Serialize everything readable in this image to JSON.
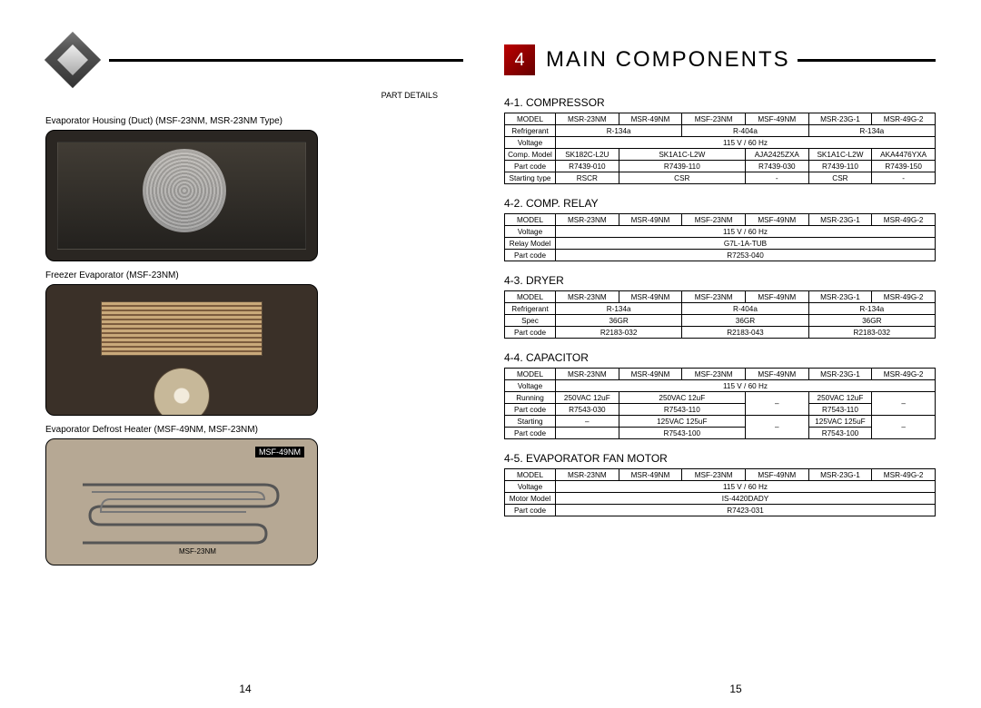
{
  "left": {
    "part_details": "PART DETAILS",
    "caption1": "Evaporator Housing (Duct) (MSF-23NM, MSR-23NM Type)",
    "caption2": "Freezer Evaporator (MSF-23NM)",
    "caption3": "Evaporator Defrost Heater (MSF-49NM, MSF-23NM)",
    "photo3_label_top": "MSF-49NM",
    "photo3_label_bottom": "MSF-23NM",
    "page_num": "14"
  },
  "right": {
    "section_num": "4",
    "main_title": "MAIN COMPONENTS",
    "page_num": "15",
    "models": [
      "MSR-23NM",
      "MSR-49NM",
      "MSF-23NM",
      "MSF-49NM",
      "MSR-23G-1",
      "MSR-49G-2"
    ],
    "sections": {
      "compressor": {
        "title": "4-1. COMPRESSOR",
        "rows": [
          {
            "label": "MODEL",
            "cells": [
              "MSR-23NM",
              "MSR-49NM",
              "MSF-23NM",
              "MSF-49NM",
              "MSR-23G-1",
              "MSR-49G-2"
            ],
            "header": true
          },
          {
            "label": "Refrigerant",
            "cells": [
              {
                "span": 2,
                "v": "R-134a"
              },
              {
                "span": 2,
                "v": "R-404a"
              },
              {
                "span": 2,
                "v": "R-134a"
              }
            ]
          },
          {
            "label": "Voltage",
            "cells": [
              {
                "span": 6,
                "v": "115 V / 60 Hz"
              }
            ]
          },
          {
            "label": "Comp. Model",
            "cells": [
              "SK182C-L2U",
              {
                "span": 2,
                "v": "SK1A1C-L2W"
              },
              "AJA2425ZXA",
              "SK1A1C-L2W",
              "AKA4476YXA"
            ]
          },
          {
            "label": "Part code",
            "cells": [
              "R7439-010",
              {
                "span": 2,
                "v": "R7439-110"
              },
              "R7439-030",
              "R7439-110",
              "R7439-150"
            ]
          },
          {
            "label": "Starting type",
            "cells": [
              "RSCR",
              {
                "span": 2,
                "v": "CSR"
              },
              "-",
              "CSR",
              "-"
            ]
          }
        ]
      },
      "relay": {
        "title": "4-2. COMP. RELAY",
        "rows": [
          {
            "label": "MODEL",
            "cells": [
              "MSR-23NM",
              "MSR-49NM",
              "MSF-23NM",
              "MSF-49NM",
              "MSR-23G-1",
              "MSR-49G-2"
            ],
            "header": true
          },
          {
            "label": "Voltage",
            "cells": [
              {
                "span": 6,
                "v": "115 V / 60 Hz"
              }
            ]
          },
          {
            "label": "Relay Model",
            "cells": [
              {
                "span": 6,
                "v": "G7L-1A-TUB"
              }
            ]
          },
          {
            "label": "Part code",
            "cells": [
              {
                "span": 6,
                "v": "R7253-040"
              }
            ]
          }
        ]
      },
      "dryer": {
        "title": "4-3. DRYER",
        "rows": [
          {
            "label": "MODEL",
            "cells": [
              "MSR-23NM",
              "MSR-49NM",
              "MSF-23NM",
              "MSF-49NM",
              "MSR-23G-1",
              "MSR-49G-2"
            ],
            "header": true
          },
          {
            "label": "Refrigerant",
            "cells": [
              {
                "span": 2,
                "v": "R-134a"
              },
              {
                "span": 2,
                "v": "R-404a"
              },
              {
                "span": 2,
                "v": "R-134a"
              }
            ]
          },
          {
            "label": "Spec",
            "cells": [
              {
                "span": 2,
                "v": "36GR"
              },
              {
                "span": 2,
                "v": "36GR"
              },
              {
                "span": 2,
                "v": "36GR"
              }
            ]
          },
          {
            "label": "Part code",
            "cells": [
              {
                "span": 2,
                "v": "R2183-032"
              },
              {
                "span": 2,
                "v": "R2183-043"
              },
              {
                "span": 2,
                "v": "R2183-032"
              }
            ]
          }
        ]
      },
      "capacitor": {
        "title": "4-4. CAPACITOR",
        "rows": [
          {
            "label": "MODEL",
            "cells": [
              "MSR-23NM",
              "MSR-49NM",
              "MSF-23NM",
              "MSF-49NM",
              "MSR-23G-1",
              "MSR-49G-2"
            ],
            "header": true
          },
          {
            "label": "Voltage",
            "cells": [
              {
                "span": 6,
                "v": "115 V / 60 Hz"
              }
            ]
          },
          {
            "label": "Running",
            "cells": [
              "250VAC 12uF",
              {
                "span": 2,
                "v": "250VAC 12uF"
              },
              {
                "rowspan": 2,
                "v": "–"
              },
              "250VAC 12uF",
              {
                "rowspan": 2,
                "v": "–"
              }
            ]
          },
          {
            "label": "Part code",
            "cells": [
              "R7543-030",
              {
                "span": 2,
                "v": "R7543-110"
              },
              "R7543-110"
            ]
          },
          {
            "label": "Starting",
            "cells": [
              "–",
              {
                "span": 2,
                "v": "125VAC 125uF"
              },
              {
                "rowspan": 2,
                "v": "–"
              },
              "125VAC 125uF",
              {
                "rowspan": 2,
                "v": "–"
              }
            ]
          },
          {
            "label": "Part code",
            "cells": [
              "",
              {
                "span": 2,
                "v": "R7543-100"
              },
              "R7543-100"
            ]
          }
        ]
      },
      "fan": {
        "title": "4-5. EVAPORATOR FAN MOTOR",
        "rows": [
          {
            "label": "MODEL",
            "cells": [
              "MSR-23NM",
              "MSR-49NM",
              "MSF-23NM",
              "MSF-49NM",
              "MSR-23G-1",
              "MSR-49G-2"
            ],
            "header": true
          },
          {
            "label": "Voltage",
            "cells": [
              {
                "span": 6,
                "v": "115 V / 60 Hz"
              }
            ]
          },
          {
            "label": "Motor Model",
            "cells": [
              {
                "span": 6,
                "v": "IS-4420DADY"
              }
            ]
          },
          {
            "label": "Part code",
            "cells": [
              {
                "span": 6,
                "v": "R7423-031"
              }
            ]
          }
        ]
      }
    }
  }
}
